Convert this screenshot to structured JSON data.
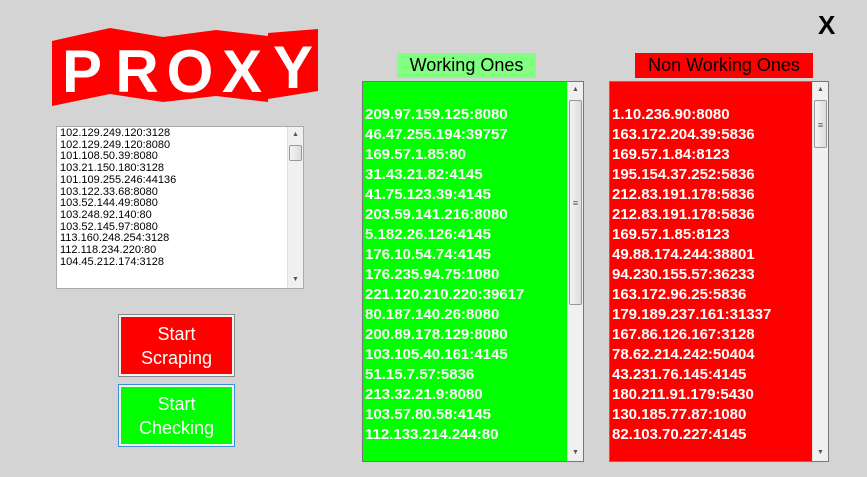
{
  "logo": {
    "text": "PROXY",
    "letters": [
      "P",
      "R",
      "O",
      "X",
      "Y"
    ],
    "color": "#ff0000"
  },
  "close_label": "X",
  "source_list": [
    "102.129.249.120:3128",
    "102.129.249.120:8080",
    "101.108.50.39:8080",
    "103.21.150.180:3128",
    "101.109.255.246:44136",
    "103.122.33.68:8080",
    "103.52.144.49:8080",
    "103.248.92.140:80",
    "103.52.145.97:8080",
    "113.160.248.254:3128",
    "112.118.234.220:80",
    "104.45.212.174:3128"
  ],
  "buttons": {
    "scrape": [
      "Start",
      "Scraping"
    ],
    "check": [
      "Start",
      "Checking"
    ]
  },
  "working": {
    "title": "Working Ones",
    "color": "#00ff00",
    "items": [
      "209.97.159.125:8080",
      "46.47.255.194:39757",
      "169.57.1.85:80",
      "31.43.21.82:4145",
      "41.75.123.39:4145",
      "203.59.141.216:8080",
      "5.182.26.126:4145",
      "176.10.54.74:4145",
      "176.235.94.75:1080",
      "221.120.210.220:39617",
      "80.187.140.26:8080",
      "200.89.178.129:8080",
      "103.105.40.161:4145",
      "51.15.7.57:5836",
      "213.32.21.9:8080",
      "103.57.80.58:4145",
      "112.133.214.244:80"
    ]
  },
  "nonworking": {
    "title": "Non Working Ones",
    "color": "#ff0000",
    "items": [
      "1.10.236.90:8080",
      "163.172.204.39:5836",
      "169.57.1.84:8123",
      "195.154.37.252:5836",
      "212.83.191.178:5836",
      "212.83.191.178:5836",
      "169.57.1.85:8123",
      "49.88.174.244:38801",
      "94.230.155.57:36233",
      "163.172.96.25:5836",
      "179.189.237.161:31337",
      "167.86.126.167:3128",
      "78.62.214.242:50404",
      "43.231.76.145:4145",
      "180.211.91.179:5430",
      "130.185.77.87:1080",
      "82.103.70.227:4145"
    ]
  }
}
